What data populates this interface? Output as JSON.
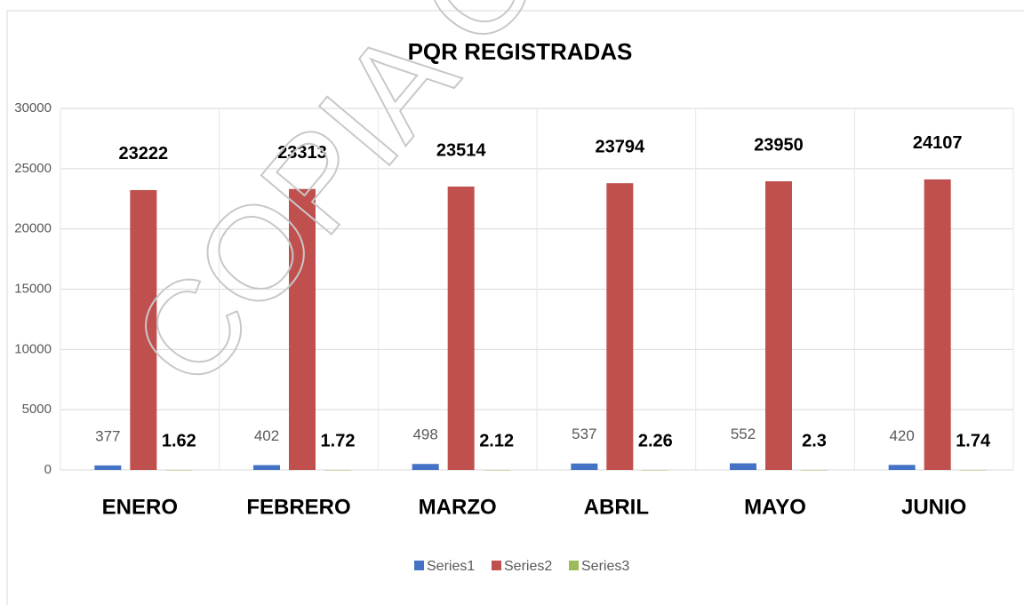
{
  "chart_data": {
    "type": "bar",
    "title": "PQR  REGISTRADAS",
    "watermark": "COPIA CO",
    "categories": [
      "ENERO",
      "FEBRERO",
      "MARZO",
      "ABRIL",
      "MAYO",
      "JUNIO"
    ],
    "series": [
      {
        "name": "Series1",
        "color": "#4472c4",
        "values": [
          377,
          402,
          498,
          537,
          552,
          420
        ]
      },
      {
        "name": "Series2",
        "color": "#c0504d",
        "values": [
          23222,
          23313,
          23514,
          23794,
          23950,
          24107
        ]
      },
      {
        "name": "Series3",
        "color": "#9bbb59",
        "values": [
          1.62,
          1.72,
          2.12,
          2.26,
          2.3,
          1.74
        ]
      }
    ],
    "ylim": [
      0,
      30000
    ],
    "yticks": [
      0,
      5000,
      10000,
      15000,
      20000,
      25000,
      30000
    ],
    "grid": true,
    "legend": "bottom"
  }
}
